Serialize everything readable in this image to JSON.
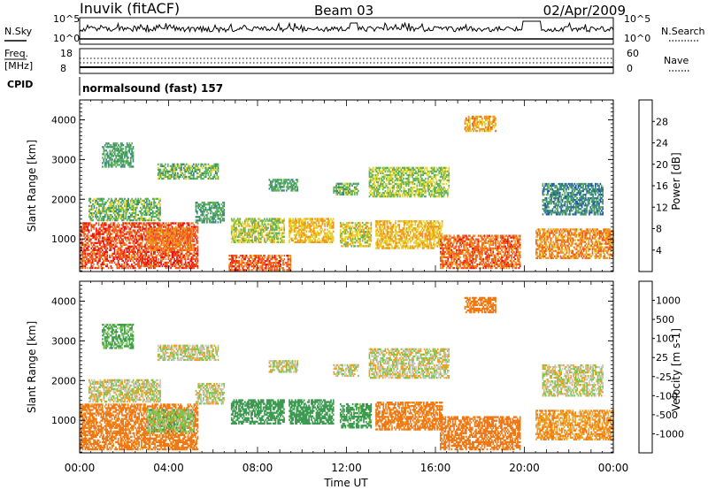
{
  "header": {
    "station": "Inuvik (fitACF)",
    "beam": "Beam 03",
    "date": "02/Apr/2009"
  },
  "noise_panel": {
    "left_label": "N.Sky",
    "right_label": "N.Search",
    "left_ticks": [
      "10^5",
      "10^0"
    ],
    "right_ticks": [
      "10^5",
      "10^0"
    ]
  },
  "freq_panel": {
    "left_label_top": "Freq.",
    "left_label_bottom": "[MHz]",
    "right_label": "Nave",
    "left_ticks": [
      "18",
      "8"
    ],
    "right_ticks": [
      "60",
      "0"
    ]
  },
  "cpid": {
    "label": "CPID",
    "value": "normalsound (fast) 157"
  },
  "chart_data": [
    {
      "type": "heatmap",
      "parameter": "power",
      "xlabel": "Time UT",
      "ylabel": "Slant Range [km]",
      "xlim": [
        0,
        24
      ],
      "ylim": [
        180,
        4500
      ],
      "x_ticks": [
        "00:00",
        "04:00",
        "08:00",
        "12:00",
        "16:00",
        "20:00",
        "00:00"
      ],
      "y_ticks": [
        1000,
        2000,
        3000,
        4000
      ],
      "colorbar": {
        "label": "Power [dB]",
        "ticks": [
          4,
          8,
          12,
          16,
          20,
          24,
          28
        ],
        "colors": [
          "#0a14f0",
          "#2455b4",
          "#3c8c7a",
          "#5fb45a",
          "#e6d228",
          "#f0961e",
          "#f05a1e",
          "#e61414"
        ]
      },
      "bands": [
        {
          "t0": 0.0,
          "t1": 5.3,
          "r0": 250,
          "r1": 1400,
          "level": 27
        },
        {
          "t0": 3.0,
          "t1": 5.1,
          "r0": 700,
          "r1": 1250,
          "level": 24
        },
        {
          "t0": 0.4,
          "t1": 3.6,
          "r0": 1450,
          "r1": 2000,
          "level": 14
        },
        {
          "t0": 1.0,
          "t1": 2.4,
          "r0": 2800,
          "r1": 3400,
          "level": 12
        },
        {
          "t0": 3.5,
          "t1": 6.2,
          "r0": 2500,
          "r1": 2900,
          "level": 14
        },
        {
          "t0": 5.2,
          "t1": 6.5,
          "r0": 1400,
          "r1": 1900,
          "level": 12
        },
        {
          "t0": 6.8,
          "t1": 9.2,
          "r0": 900,
          "r1": 1500,
          "level": 17
        },
        {
          "t0": 6.7,
          "t1": 9.5,
          "r0": 200,
          "r1": 600,
          "level": 26
        },
        {
          "t0": 8.5,
          "t1": 9.8,
          "r0": 2200,
          "r1": 2500,
          "level": 12
        },
        {
          "t0": 9.4,
          "t1": 11.4,
          "r0": 900,
          "r1": 1500,
          "level": 20
        },
        {
          "t0": 11.4,
          "t1": 12.5,
          "r0": 2100,
          "r1": 2400,
          "level": 14
        },
        {
          "t0": 11.7,
          "t1": 13.1,
          "r0": 800,
          "r1": 1400,
          "level": 18
        },
        {
          "t0": 13.3,
          "t1": 16.3,
          "r0": 750,
          "r1": 1450,
          "level": 20
        },
        {
          "t0": 13.0,
          "t1": 16.6,
          "r0": 2050,
          "r1": 2800,
          "level": 16
        },
        {
          "t0": 16.2,
          "t1": 19.8,
          "r0": 250,
          "r1": 1100,
          "level": 25
        },
        {
          "t0": 17.3,
          "t1": 18.7,
          "r0": 3700,
          "r1": 4100,
          "level": 21
        },
        {
          "t0": 20.5,
          "t1": 24.0,
          "r0": 500,
          "r1": 1250,
          "level": 23
        },
        {
          "t0": 20.8,
          "t1": 23.5,
          "r0": 1600,
          "r1": 2400,
          "level": 10
        }
      ]
    },
    {
      "type": "heatmap",
      "parameter": "velocity",
      "xlabel": "Time UT",
      "ylabel": "Slant Range [km]",
      "xlim": [
        0,
        24
      ],
      "ylim": [
        180,
        4500
      ],
      "x_ticks": [
        "00:00",
        "04:00",
        "08:00",
        "12:00",
        "16:00",
        "20:00",
        "00:00"
      ],
      "y_ticks": [
        1000,
        2000,
        3000,
        4000
      ],
      "colorbar": {
        "label": "Velocity [m s-1]",
        "ticks": [
          "1000",
          "500",
          "100",
          "25",
          "-25",
          "-100",
          "-500",
          "-1000"
        ],
        "colors": [
          "#1e3cc8",
          "#2a7a6e",
          "#3c9a50",
          "#78c84a",
          "#c8c8be",
          "#f0a01e",
          "#f07814",
          "#e63c14",
          "#e61414"
        ]
      },
      "bands": [
        {
          "t0": 0.0,
          "t1": 5.3,
          "r0": 250,
          "r1": 1400,
          "level": -150
        },
        {
          "t0": 3.0,
          "t1": 5.1,
          "r0": 700,
          "r1": 1250,
          "level": 60
        },
        {
          "t0": 0.4,
          "t1": 3.6,
          "r0": 1450,
          "r1": 2000,
          "level": 0
        },
        {
          "t0": 1.0,
          "t1": 2.4,
          "r0": 2800,
          "r1": 3400,
          "level": 120
        },
        {
          "t0": 3.5,
          "t1": 6.2,
          "r0": 2500,
          "r1": 2900,
          "level": 0
        },
        {
          "t0": 5.2,
          "t1": 6.5,
          "r0": 1400,
          "r1": 1900,
          "level": 0
        },
        {
          "t0": 6.8,
          "t1": 9.2,
          "r0": 900,
          "r1": 1500,
          "level": 200
        },
        {
          "t0": 8.5,
          "t1": 9.8,
          "r0": 2200,
          "r1": 2500,
          "level": 0
        },
        {
          "t0": 9.4,
          "t1": 11.4,
          "r0": 900,
          "r1": 1500,
          "level": 200
        },
        {
          "t0": 11.4,
          "t1": 12.5,
          "r0": 2100,
          "r1": 2400,
          "level": 0
        },
        {
          "t0": 11.7,
          "t1": 13.1,
          "r0": 800,
          "r1": 1400,
          "level": 150
        },
        {
          "t0": 13.3,
          "t1": 16.3,
          "r0": 750,
          "r1": 1450,
          "level": -150
        },
        {
          "t0": 13.0,
          "t1": 16.6,
          "r0": 2050,
          "r1": 2800,
          "level": 0
        },
        {
          "t0": 16.2,
          "t1": 19.8,
          "r0": 250,
          "r1": 1100,
          "level": -200
        },
        {
          "t0": 17.3,
          "t1": 18.7,
          "r0": 3700,
          "r1": 4100,
          "level": -150
        },
        {
          "t0": 20.5,
          "t1": 24.0,
          "r0": 500,
          "r1": 1250,
          "level": -80
        },
        {
          "t0": 20.8,
          "t1": 23.5,
          "r0": 1600,
          "r1": 2400,
          "level": 0
        }
      ]
    }
  ]
}
